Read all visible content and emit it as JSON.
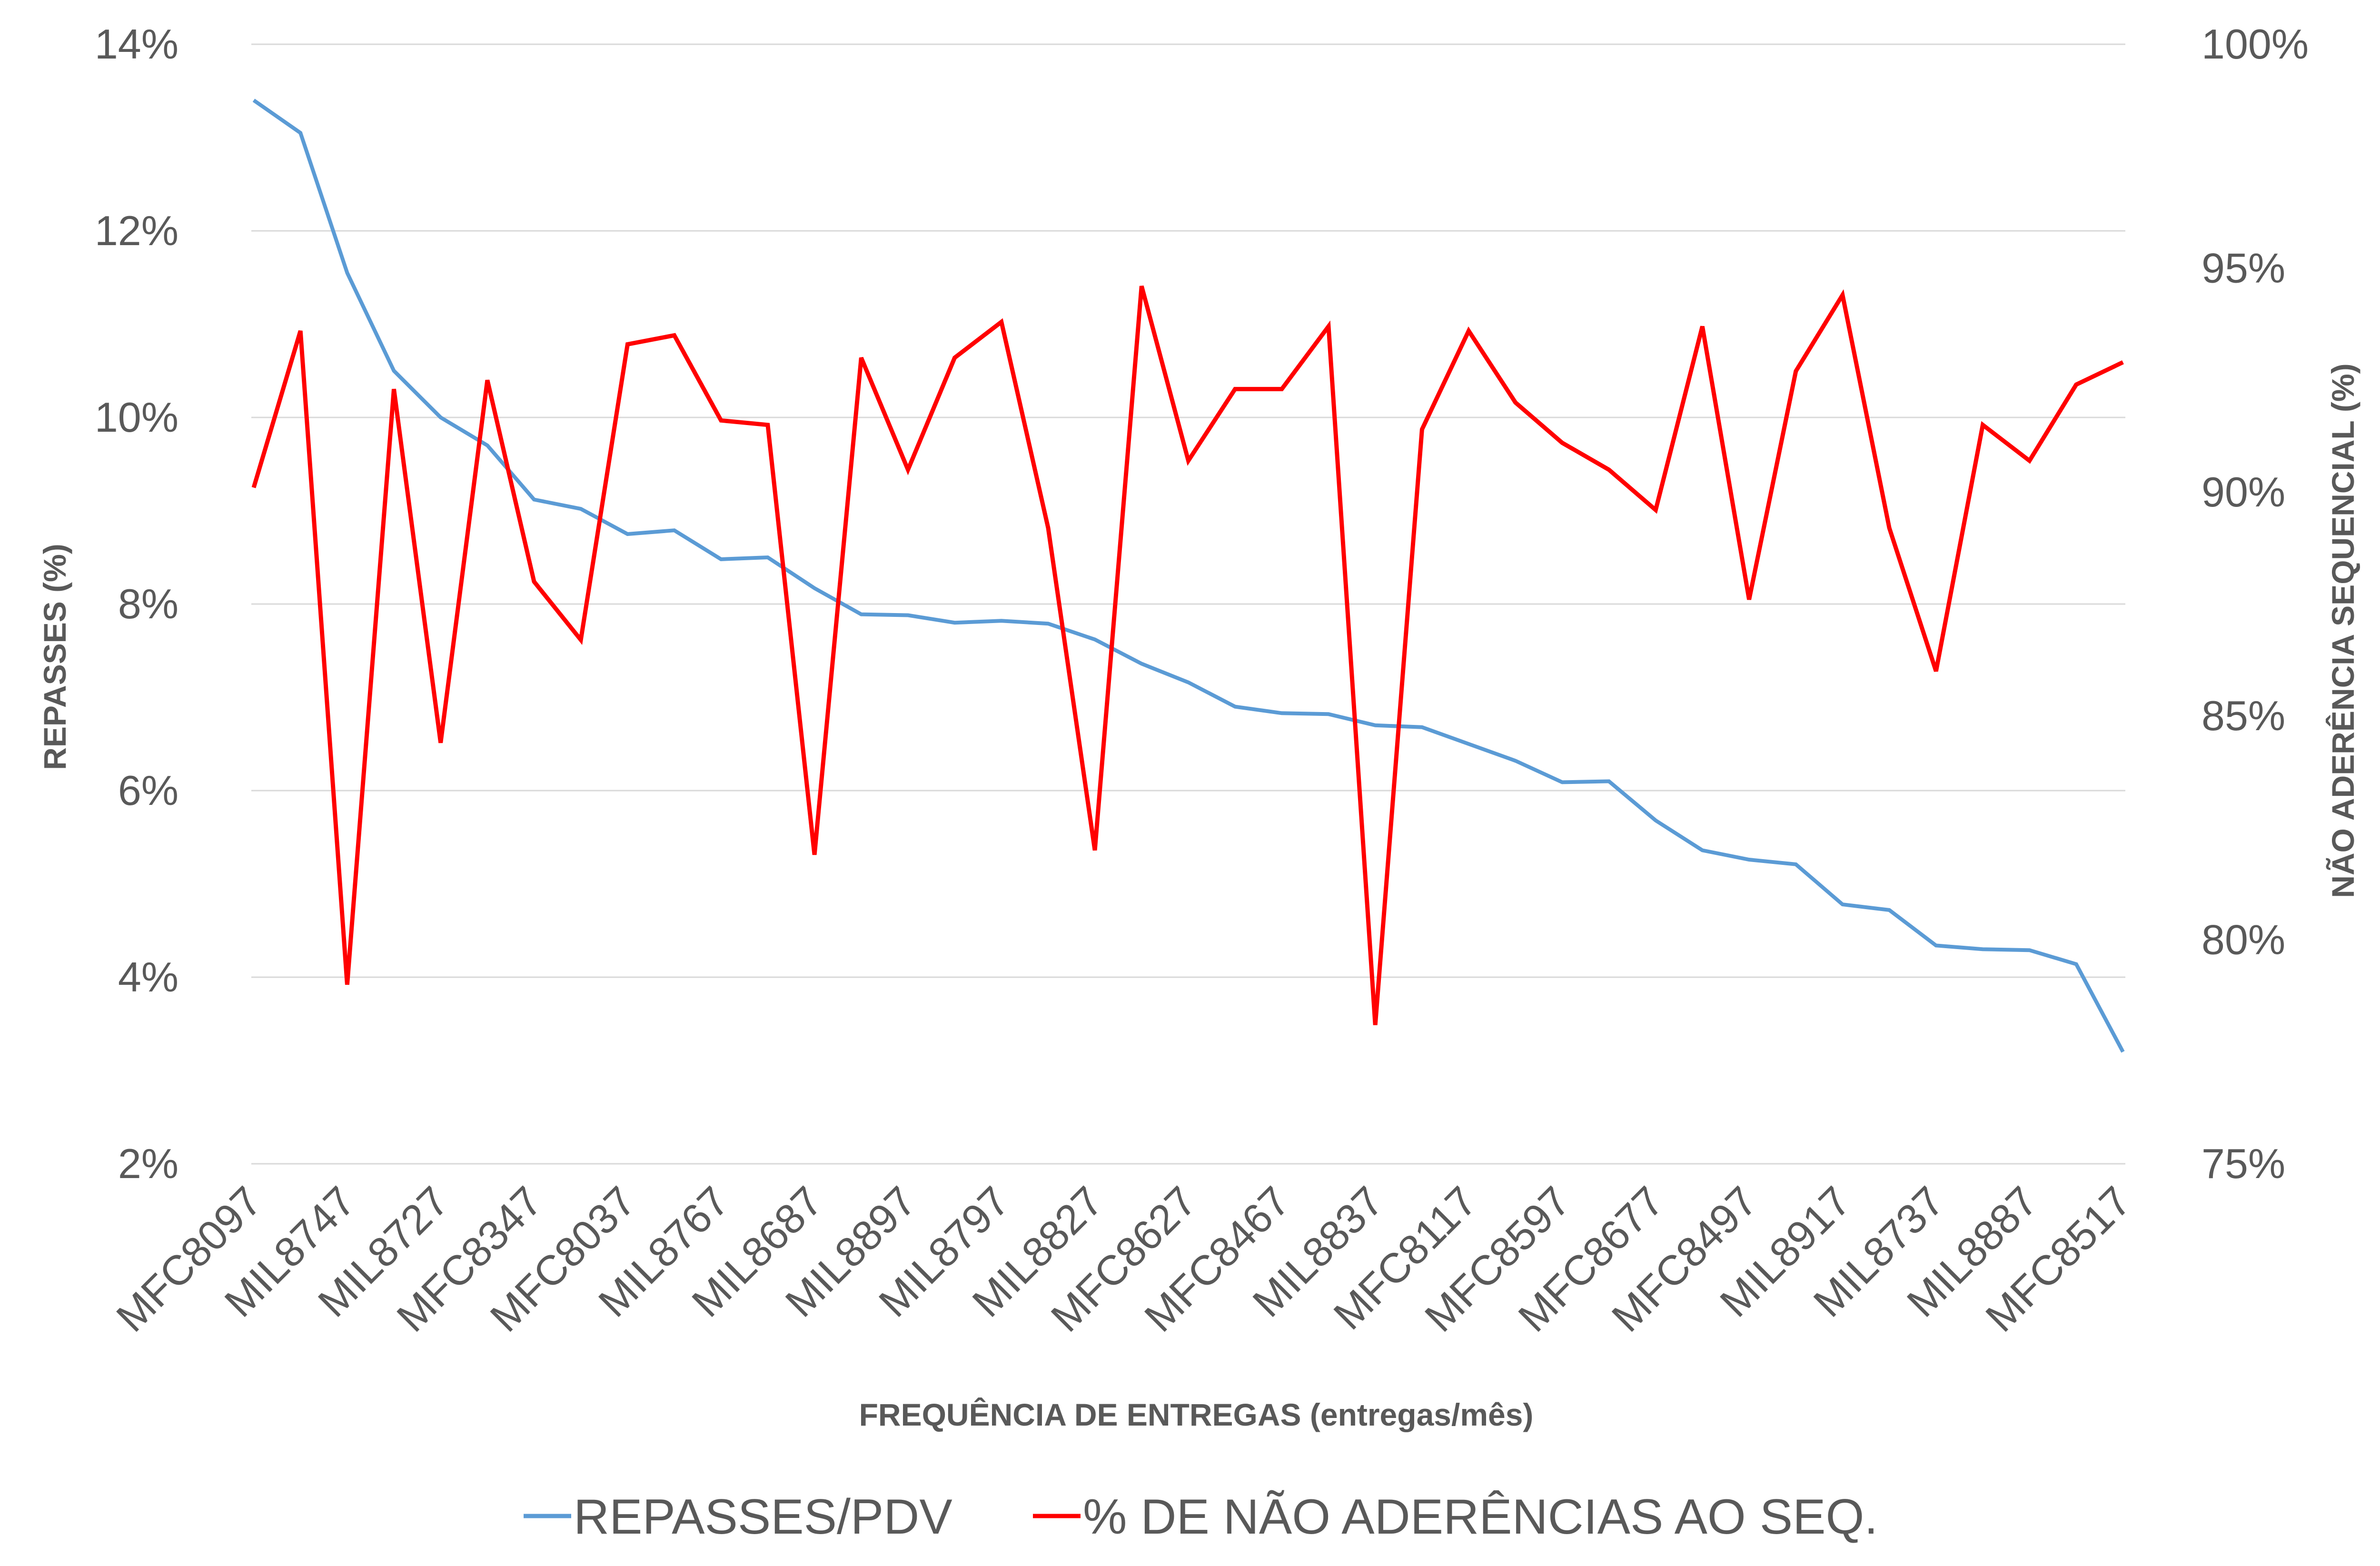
{
  "chart_data": {
    "type": "line",
    "title": "",
    "xlabel": "FREQUÊNCIA DE ENTREGAS (entregas/mês)",
    "ylabel_left": "REPASSES (%)",
    "ylabel_right": "NÃO ADERÊNCIA SEQUENCIAL (%)",
    "y_left": {
      "min": 2,
      "max": 14,
      "ticks": [
        2,
        4,
        6,
        8,
        10,
        12,
        14
      ],
      "format": "percent"
    },
    "y_right": {
      "min": 75,
      "max": 100,
      "ticks": [
        75,
        80,
        85,
        90,
        95,
        100
      ],
      "format": "percent"
    },
    "grid": true,
    "legend_position": "bottom",
    "x_labels_shown": [
      "MFC8097",
      "MIL8747",
      "MIL8727",
      "MFC8347",
      "MFC8037",
      "MIL8767",
      "MIL8687",
      "MIL8897",
      "MIL8797",
      "MIL8827",
      "MFC8627",
      "MFC8467",
      "MIL8837",
      "MFC8117",
      "MFC8597",
      "MFC8677",
      "MFC8497",
      "MIL8917",
      "MIL8737",
      "MIL8887",
      "MFC8517"
    ],
    "x_label_every": 2,
    "point_count": 41,
    "series": [
      {
        "name": "REPASSES/PDV",
        "axis": "left",
        "color": "#5B9BD5",
        "values": [
          13.4,
          13.05,
          11.55,
          10.5,
          10.0,
          9.7,
          9.12,
          9.02,
          8.75,
          8.79,
          8.48,
          8.5,
          8.17,
          7.89,
          7.88,
          7.8,
          7.82,
          7.79,
          7.62,
          7.36,
          7.16,
          6.9,
          6.83,
          6.82,
          6.7,
          6.68,
          6.5,
          6.32,
          6.09,
          6.1,
          5.68,
          5.36,
          5.26,
          5.21,
          4.78,
          4.72,
          4.34,
          4.3,
          4.29,
          4.14,
          3.2
        ]
      },
      {
        "name": "% DE NÃO ADERÊNCIAS AO SEQ.",
        "axis": "right",
        "color": "#FF0000",
        "values": [
          90.1,
          93.6,
          79.0,
          92.3,
          84.4,
          92.5,
          88.0,
          86.7,
          93.3,
          93.5,
          91.6,
          91.5,
          81.9,
          93.0,
          90.5,
          93.0,
          93.8,
          89.2,
          82.0,
          94.6,
          90.7,
          92.3,
          92.3,
          93.7,
          78.1,
          91.4,
          93.6,
          92.0,
          91.1,
          90.5,
          89.6,
          93.7,
          87.6,
          92.7,
          94.4,
          89.2,
          86.0,
          91.5,
          90.7,
          92.4,
          92.9
        ]
      }
    ]
  }
}
